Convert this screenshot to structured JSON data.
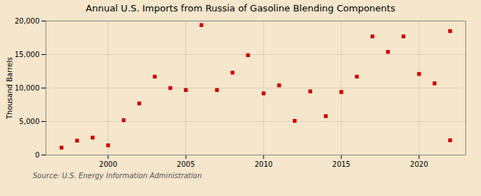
{
  "chart_data": {
    "type": "scatter",
    "title": "Annual U.S. Imports from Russia of Gasoline Blending Components",
    "ylabel": "Thousand Barrels",
    "source": "Source: U.S. Energy Information Administration",
    "background_color": "#f5e6cc",
    "color": "#cc0000",
    "marker": "square",
    "grid": true,
    "x": [
      1997,
      1998,
      1999,
      2000,
      2001,
      2002,
      2003,
      2004,
      2005,
      2006,
      2007,
      2008,
      2009,
      2010,
      2011,
      2012,
      2013,
      2014,
      2015,
      2016,
      2017,
      2018,
      2019,
      2020,
      2021,
      2022,
      2022
    ],
    "values": [
      1100,
      2150,
      2600,
      1450,
      5200,
      7700,
      11700,
      10000,
      9700,
      19400,
      9700,
      12300,
      14900,
      9200,
      10400,
      5100,
      9500,
      5800,
      9400,
      11700,
      17700,
      15400,
      17700,
      12100,
      10700,
      18500,
      2200
    ],
    "xlim": [
      1996,
      2023
    ],
    "xticks": [
      2000,
      2005,
      2010,
      2015,
      2020
    ],
    "ylim": [
      0,
      20000
    ],
    "yticks": [
      0,
      {
        "value": 5000,
        "label": "5,000"
      },
      {
        "value": 10000,
        "label": "10,000"
      },
      {
        "value": 15000,
        "label": "15,000"
      },
      {
        "value": 20000,
        "label": "20,000"
      }
    ]
  }
}
